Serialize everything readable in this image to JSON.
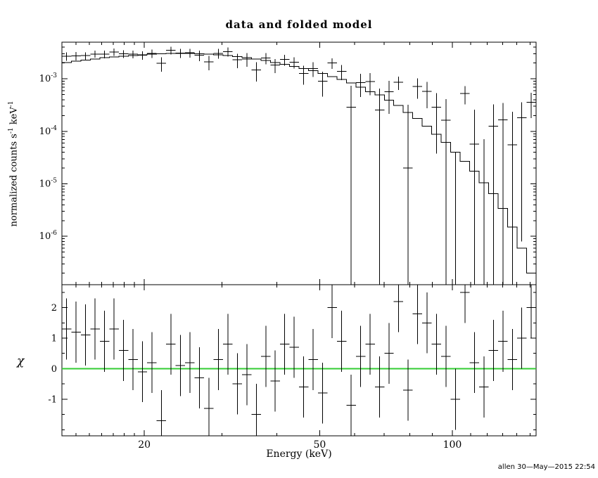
{
  "footer": "allen 30—May—2015 22:54",
  "chart_data": {
    "type": "line",
    "title": "data and folded model",
    "xlabel": "Energy (keV)",
    "xscale": "log",
    "xlim": [
      13,
      154.9
    ],
    "xticks_labeled": [
      20,
      50,
      100
    ],
    "panels": [
      {
        "name": "spectrum",
        "ylabel": "normalized counts s^-1 keV^-1",
        "ylabel_parts": [
          {
            "t": "normalized counts s"
          },
          {
            "t": "-1",
            "sup": true
          },
          {
            "t": " keV"
          },
          {
            "t": "-1",
            "sup": true
          }
        ],
        "yscale": "log",
        "ylim": [
          1.2e-07,
          0.005
        ],
        "yticks_labeled": [
          0.001,
          0.0001,
          1e-05,
          1e-06
        ]
      },
      {
        "name": "residuals",
        "ylabel": "χ",
        "yscale": "linear",
        "ylim": [
          -2.2,
          2.75
        ],
        "yticks_labeled": [
          -1,
          0,
          1,
          2
        ],
        "zero_line_color": "#33cc33"
      }
    ],
    "bins": {
      "edges_kev": [
        13.0,
        13.66,
        14.35,
        15.08,
        15.85,
        16.65,
        17.5,
        18.39,
        19.32,
        20.3,
        21.33,
        22.42,
        23.56,
        24.75,
        26.01,
        27.33,
        28.72,
        30.18,
        31.71,
        33.32,
        35.02,
        36.8,
        38.67,
        40.63,
        42.69,
        44.86,
        47.14,
        49.54,
        52.05,
        54.7,
        57.48,
        60.4,
        63.47,
        66.69,
        70.08,
        73.64,
        77.38,
        81.31,
        85.45,
        89.79,
        94.35,
        99.14,
        104.18,
        109.47,
        115.04,
        120.88,
        127.02,
        133.48,
        140.26,
        147.39,
        154.88
      ],
      "data": [
        0.0027,
        0.00276,
        0.00277,
        0.00298,
        0.00297,
        0.00326,
        0.00301,
        0.00295,
        0.00283,
        0.00305,
        0.00197,
        0.00351,
        0.00311,
        0.00315,
        0.00281,
        0.00211,
        0.00307,
        0.0033,
        0.00231,
        0.00239,
        0.00149,
        0.00249,
        0.00184,
        0.00234,
        0.00208,
        0.00127,
        0.00158,
        0.00091,
        0.00201,
        0.00139,
        0.00029,
        0.00085,
        0.00089,
        0.000255,
        0.000565,
        0.00086,
        2e-05,
        0.000715,
        0.000575,
        0.000288,
        0.000162,
        -0.00021,
        0.000527,
        5.75e-05,
        -7.95e-05,
        0.0001265,
        0.0001654,
        5.58e-05,
        0.0001808,
        0.00036
      ],
      "err": [
        0.0005,
        0.0005,
        0.00045,
        0.00045,
        0.0005,
        0.0005,
        0.0005,
        0.0005,
        0.0005,
        0.00055,
        0.0006,
        0.0006,
        0.0006,
        0.0006,
        0.00065,
        0.00065,
        0.00065,
        0.00065,
        0.0007,
        0.0007,
        0.0006,
        0.0006,
        0.00055,
        0.00055,
        0.0005,
        0.0005,
        0.0005,
        0.00045,
        0.00045,
        0.00045,
        0.00045,
        0.0004,
        0.0004,
        0.0004,
        0.00035,
        0.00025,
        0.0003,
        0.0003,
        0.0003,
        0.00025,
        0.00025,
        0.00025,
        0.0002,
        0.0002,
        0.00015,
        0.0002,
        0.00018,
        0.00018,
        0.00018,
        0.00018
      ],
      "model": [
        0.00205,
        0.00216,
        0.00227,
        0.00239,
        0.00252,
        0.00261,
        0.00271,
        0.0028,
        0.00288,
        0.00294,
        0.00299,
        0.00303,
        0.00305,
        0.00303,
        0.003,
        0.00295,
        0.00287,
        0.00278,
        0.00266,
        0.00253,
        0.00239,
        0.00225,
        0.00206,
        0.0019,
        0.00173,
        0.00157,
        0.00143,
        0.00127,
        0.00111,
        0.00098,
        0.00083,
        0.00069,
        0.00057,
        0.000495,
        0.00039,
        0.00031,
        0.00023,
        0.000175,
        0.000125,
        8.8e-05,
        6.2e-05,
        4e-05,
        2.7e-05,
        1.75e-05,
        1.05e-05,
        6.5e-06,
        3.4e-06,
        1.5e-06,
        6e-07,
        2e-07
      ],
      "chi": [
        1.3,
        1.2,
        1.1,
        1.3,
        0.9,
        1.3,
        0.6,
        0.3,
        -0.1,
        0.2,
        -1.7,
        0.8,
        0.1,
        0.2,
        -0.3,
        -1.3,
        0.3,
        0.8,
        -0.5,
        -0.2,
        -1.5,
        0.4,
        -0.4,
        0.8,
        0.7,
        -0.6,
        0.3,
        -0.8,
        2.0,
        0.9,
        -1.2,
        0.4,
        0.8,
        -0.6,
        0.5,
        2.2,
        -0.7,
        1.8,
        1.5,
        0.8,
        0.4,
        -1.0,
        2.5,
        0.2,
        -0.6,
        0.6,
        0.9,
        0.3,
        1.0,
        2.0
      ],
      "chi_err": 1
    }
  }
}
